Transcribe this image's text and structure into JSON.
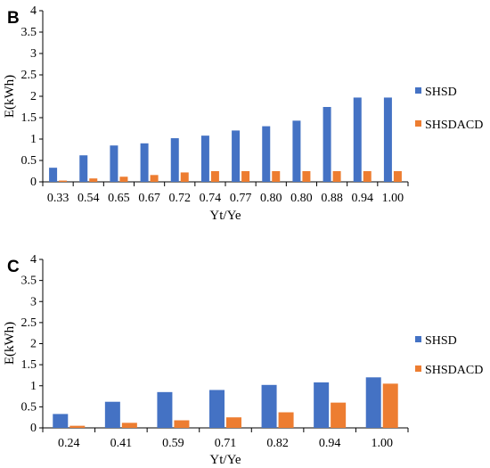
{
  "chart_data": [
    {
      "type": "bar",
      "panel_label": "B",
      "categories": [
        "0.33",
        "0.54",
        "0.65",
        "0.67",
        "0.72",
        "0.74",
        "0.77",
        "0.80",
        "0.80",
        "0.88",
        "0.94",
        "1.00"
      ],
      "series": [
        {
          "name": "SHSD",
          "color": "#4472C4",
          "values": [
            0.33,
            0.62,
            0.85,
            0.9,
            1.02,
            1.08,
            1.2,
            1.3,
            1.43,
            1.75,
            1.97,
            1.97
          ]
        },
        {
          "name": "SHSDACD",
          "color": "#ED7D31",
          "values": [
            0.03,
            0.08,
            0.12,
            0.16,
            0.22,
            0.25,
            0.25,
            0.25,
            0.25,
            0.25,
            0.25,
            0.25
          ]
        }
      ],
      "xlabel": "Yt/Ye",
      "ylabel": "E(kWh)",
      "ylim": [
        0,
        4
      ],
      "yticks": [
        "0",
        "0.5",
        "1",
        "1.5",
        "2",
        "2.5",
        "3",
        "3.5",
        "4"
      ],
      "grid": false,
      "legend_position": "right"
    },
    {
      "type": "bar",
      "panel_label": "C",
      "categories": [
        "0.24",
        "0.41",
        "0.59",
        "0.71",
        "0.82",
        "0.94",
        "1.00"
      ],
      "series": [
        {
          "name": "SHSD",
          "color": "#4472C4",
          "values": [
            0.33,
            0.62,
            0.85,
            0.9,
            1.02,
            1.08,
            1.2
          ]
        },
        {
          "name": "SHSDACD",
          "color": "#ED7D31",
          "values": [
            0.05,
            0.12,
            0.18,
            0.25,
            0.37,
            0.6,
            1.05
          ]
        }
      ],
      "xlabel": "Yt/Ye",
      "ylabel": "E(kWh)",
      "ylim": [
        0,
        4
      ],
      "yticks": [
        "0",
        "0.5",
        "1",
        "1.5",
        "2",
        "2.5",
        "3",
        "3.5",
        "4"
      ],
      "grid": false,
      "legend_position": "right"
    }
  ]
}
